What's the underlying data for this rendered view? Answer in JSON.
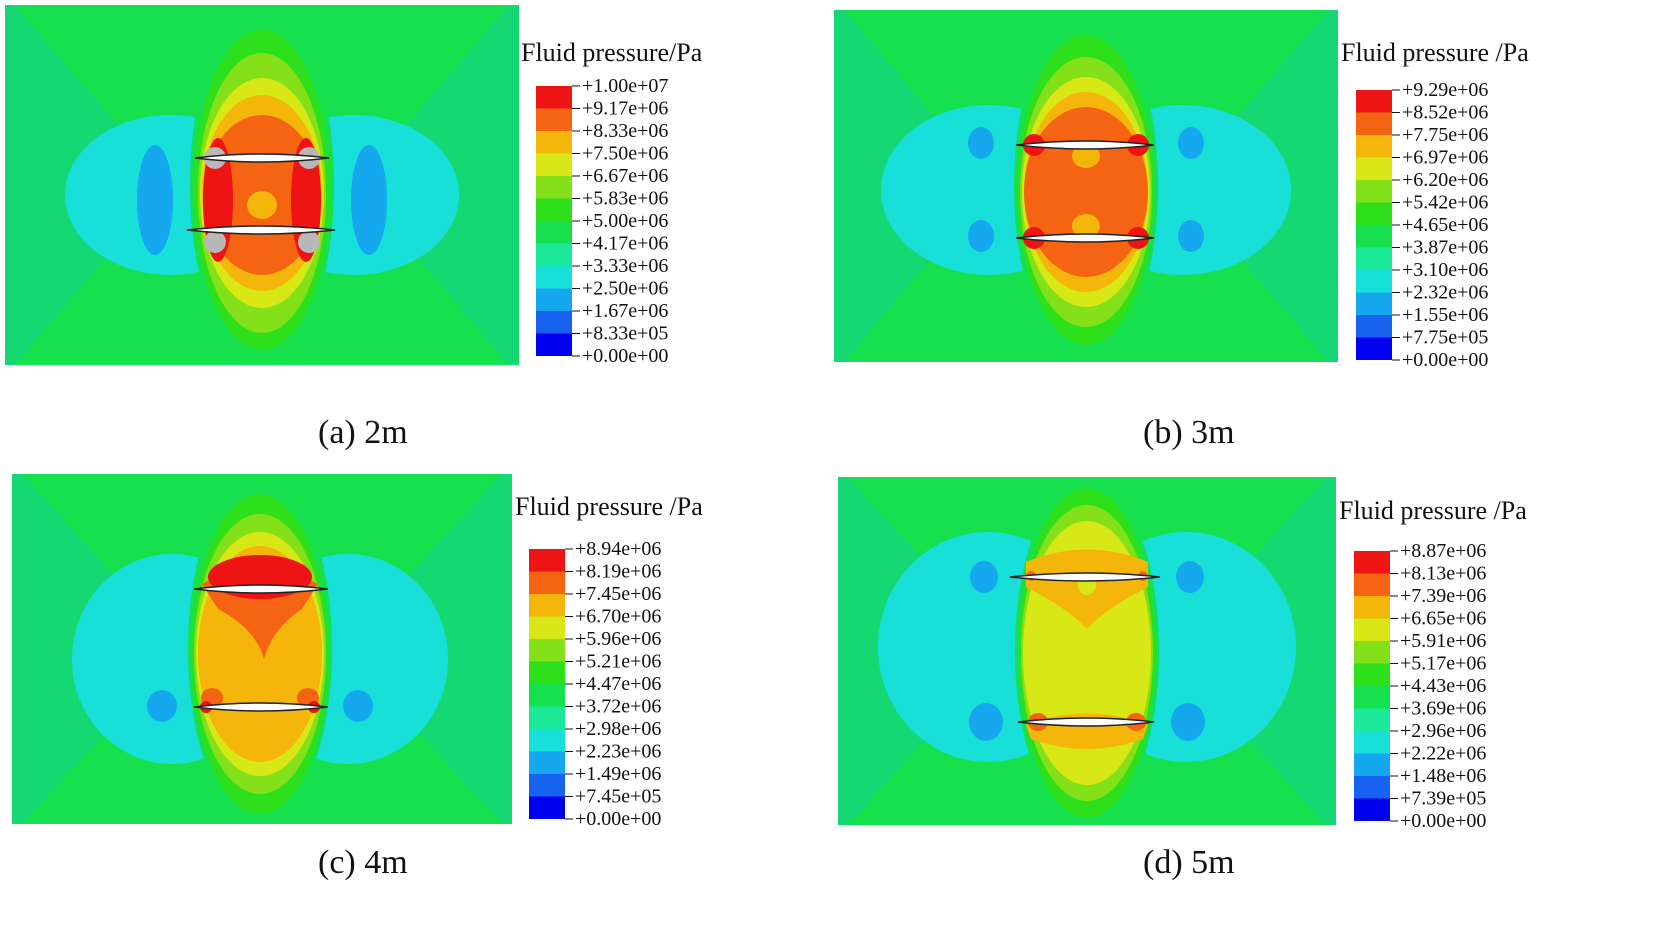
{
  "colormap": [
    "#0000ee",
    "#1762ee",
    "#16a8ee",
    "#18e0d8",
    "#1ce89a",
    "#16e04e",
    "#2ee01c",
    "#84e018",
    "#d8e816",
    "#f4b60a",
    "#f46412",
    "#ee1414"
  ],
  "panels": [
    {
      "id": "a",
      "caption": "(a) 2m",
      "legend_title": "Fluid pressure/Pa",
      "legend_ticks": [
        "+1.00e+07",
        "+9.17e+06",
        "+8.33e+06",
        "+7.50e+06",
        "+6.67e+06",
        "+5.83e+06",
        "+5.00e+06",
        "+4.17e+06",
        "+3.33e+06",
        "+2.50e+06",
        "+1.67e+06",
        "+8.33e+05",
        "+0.00e+00"
      ]
    },
    {
      "id": "b",
      "caption": "(b) 3m",
      "legend_title": "Fluid pressure /Pa",
      "legend_ticks": [
        "+9.29e+06",
        "+8.52e+06",
        "+7.75e+06",
        "+6.97e+06",
        "+6.20e+06",
        "+5.42e+06",
        "+4.65e+06",
        "+3.87e+06",
        "+3.10e+06",
        "+2.32e+06",
        "+1.55e+06",
        "+7.75e+05",
        "+0.00e+00"
      ]
    },
    {
      "id": "c",
      "caption": "(c) 4m",
      "legend_title": "Fluid pressure /Pa",
      "legend_ticks": [
        "+8.94e+06",
        "+8.19e+06",
        "+7.45e+06",
        "+6.70e+06",
        "+5.96e+06",
        "+5.21e+06",
        "+4.47e+06",
        "+3.72e+06",
        "+2.98e+06",
        "+2.23e+06",
        "+1.49e+06",
        "+7.45e+05",
        "+0.00e+00"
      ]
    },
    {
      "id": "d",
      "caption": "(d) 5m",
      "legend_title": "Fluid pressure /Pa",
      "legend_ticks": [
        "+8.87e+06",
        "+8.13e+06",
        "+7.39e+06",
        "+6.65e+06",
        "+5.91e+06",
        "+5.17e+06",
        "+4.43e+06",
        "+3.69e+06",
        "+2.96e+06",
        "+2.22e+06",
        "+1.48e+06",
        "+7.39e+05",
        "+0.00e+00"
      ]
    }
  ]
}
